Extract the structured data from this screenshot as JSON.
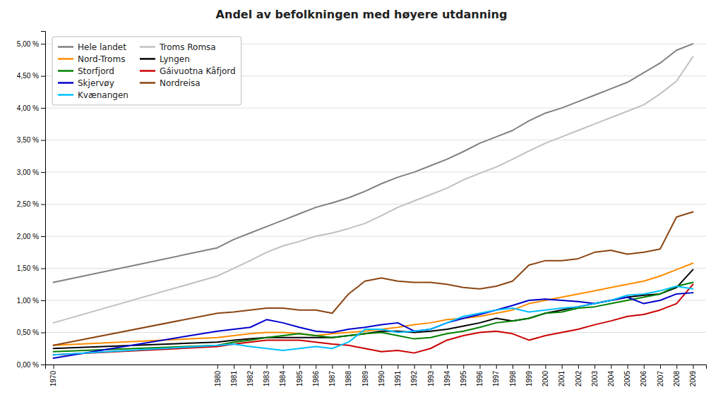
{
  "chart_data": {
    "type": "line",
    "title": "Andel av befolkningen med høyere utdanning",
    "x": [
      1970,
      1980,
      1981,
      1982,
      1983,
      1984,
      1985,
      1986,
      1987,
      1988,
      1989,
      1990,
      1991,
      1992,
      1993,
      1994,
      1995,
      1996,
      1997,
      1998,
      1999,
      2000,
      2001,
      2002,
      2003,
      2004,
      2005,
      2006,
      2007,
      2008,
      2009
    ],
    "series": [
      {
        "name": "Hele landet",
        "color": "#808080",
        "values": [
          1.28,
          1.82,
          1.95,
          2.05,
          2.15,
          2.25,
          2.35,
          2.45,
          2.52,
          2.6,
          2.7,
          2.82,
          2.92,
          3.0,
          3.1,
          3.2,
          3.32,
          3.45,
          3.55,
          3.65,
          3.8,
          3.92,
          4.0,
          4.1,
          4.2,
          4.3,
          4.4,
          4.55,
          4.7,
          4.9,
          5.0
        ]
      },
      {
        "name": "Troms Romsa",
        "color": "#c0c0c0",
        "values": [
          0.65,
          1.38,
          1.5,
          1.62,
          1.75,
          1.85,
          1.92,
          2.0,
          2.05,
          2.12,
          2.2,
          2.32,
          2.45,
          2.55,
          2.65,
          2.75,
          2.88,
          2.98,
          3.08,
          3.2,
          3.33,
          3.45,
          3.55,
          3.65,
          3.75,
          3.85,
          3.95,
          4.05,
          4.22,
          4.42,
          4.8
        ]
      },
      {
        "name": "Nord-Troms",
        "color": "#FF8C00",
        "values": [
          0.3,
          0.42,
          0.45,
          0.48,
          0.5,
          0.5,
          0.48,
          0.45,
          0.48,
          0.5,
          0.52,
          0.55,
          0.58,
          0.62,
          0.65,
          0.7,
          0.72,
          0.75,
          0.8,
          0.85,
          0.95,
          1.0,
          1.05,
          1.1,
          1.15,
          1.2,
          1.25,
          1.3,
          1.38,
          1.48,
          1.58
        ]
      },
      {
        "name": "Lyngen",
        "color": "#000000",
        "values": [
          0.25,
          0.35,
          0.38,
          0.4,
          0.42,
          0.42,
          0.42,
          0.42,
          0.42,
          0.45,
          0.48,
          0.52,
          0.52,
          0.5,
          0.52,
          0.55,
          0.6,
          0.65,
          0.72,
          0.68,
          0.72,
          0.8,
          0.85,
          0.9,
          0.95,
          1.0,
          1.05,
          1.08,
          1.1,
          1.2,
          1.48
        ]
      },
      {
        "name": "Storfjord",
        "color": "#008000",
        "values": [
          0.2,
          0.3,
          0.35,
          0.38,
          0.42,
          0.45,
          0.48,
          0.45,
          0.42,
          0.45,
          0.48,
          0.5,
          0.45,
          0.4,
          0.42,
          0.48,
          0.52,
          0.58,
          0.65,
          0.68,
          0.72,
          0.8,
          0.82,
          0.88,
          0.9,
          0.95,
          1.0,
          1.05,
          1.1,
          1.22,
          1.28
        ]
      },
      {
        "name": "Gáivuotna Kåfjord",
        "color": "#CC0000",
        "values": [
          0.15,
          0.28,
          0.32,
          0.35,
          0.38,
          0.38,
          0.38,
          0.35,
          0.32,
          0.3,
          0.25,
          0.2,
          0.22,
          0.18,
          0.25,
          0.38,
          0.45,
          0.5,
          0.52,
          0.48,
          0.38,
          0.45,
          0.5,
          0.55,
          0.62,
          0.68,
          0.75,
          0.78,
          0.85,
          0.95,
          1.25
        ]
      },
      {
        "name": "Skjervøy",
        "color": "#0000CC",
        "values": [
          0.1,
          0.52,
          0.55,
          0.58,
          0.7,
          0.65,
          0.58,
          0.52,
          0.5,
          0.55,
          0.58,
          0.62,
          0.65,
          0.52,
          0.55,
          0.65,
          0.72,
          0.78,
          0.85,
          0.92,
          1.0,
          1.02,
          1.0,
          0.98,
          0.95,
          1.0,
          1.05,
          0.95,
          1.0,
          1.1,
          1.12
        ]
      },
      {
        "name": "Nordreisa",
        "color": "#8B4513",
        "values": [
          0.3,
          0.8,
          0.82,
          0.85,
          0.88,
          0.88,
          0.85,
          0.85,
          0.8,
          1.1,
          1.3,
          1.35,
          1.3,
          1.28,
          1.28,
          1.25,
          1.2,
          1.18,
          1.22,
          1.3,
          1.55,
          1.62,
          1.62,
          1.65,
          1.75,
          1.78,
          1.72,
          1.75,
          1.8,
          2.3,
          2.38
        ]
      },
      {
        "name": "Kvænangen",
        "color": "#00BFFF",
        "values": [
          0.15,
          0.3,
          0.32,
          0.28,
          0.25,
          0.22,
          0.25,
          0.28,
          0.25,
          0.35,
          0.55,
          0.55,
          0.5,
          0.52,
          0.55,
          0.65,
          0.75,
          0.8,
          0.85,
          0.88,
          0.82,
          0.85,
          0.88,
          0.9,
          0.95,
          1.0,
          1.08,
          1.1,
          1.15,
          1.22,
          1.18
        ]
      }
    ],
    "xlim": [
      1969.5,
      2009.8
    ],
    "xticks": [
      1970,
      1980,
      1981,
      1982,
      1983,
      1984,
      1985,
      1986,
      1987,
      1988,
      1989,
      1990,
      1991,
      1992,
      1993,
      1994,
      1995,
      1996,
      1997,
      1998,
      1999,
      2000,
      2001,
      2002,
      2003,
      2004,
      2005,
      2006,
      2007,
      2008,
      2009
    ],
    "ylim": [
      0.0,
      5.2
    ],
    "yticks": [
      {
        "value": 0.0,
        "label": "0,00 %"
      },
      {
        "value": 0.5,
        "label": "0,50 %"
      },
      {
        "value": 1.0,
        "label": "1,00 %"
      },
      {
        "value": 1.5,
        "label": "1,50 %"
      },
      {
        "value": 2.0,
        "label": "2,00 %"
      },
      {
        "value": 2.5,
        "label": "2,50 %"
      },
      {
        "value": 3.0,
        "label": "3,00 %"
      },
      {
        "value": 3.5,
        "label": "3,50 %"
      },
      {
        "value": 4.0,
        "label": "4,00 %"
      },
      {
        "value": 4.5,
        "label": "4,50 %"
      },
      {
        "value": 5.0,
        "label": "5,00 %"
      }
    ],
    "grid": true,
    "legend": "upper-left"
  }
}
